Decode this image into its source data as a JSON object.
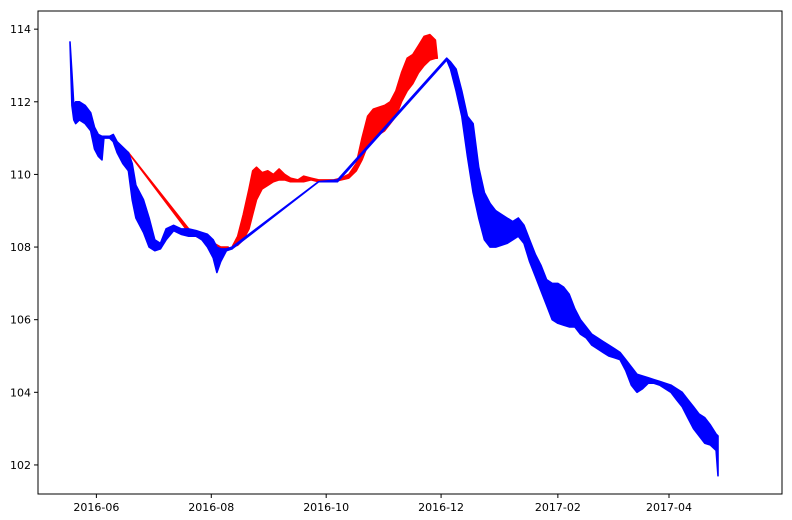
{
  "chart_data": {
    "type": "area",
    "x_ticks": [
      "2016-06",
      "2016-08",
      "2016-10",
      "2016-12",
      "2017-02",
      "2017-04"
    ],
    "y_ticks": [
      102,
      104,
      106,
      108,
      110,
      112,
      114
    ],
    "xlim": [
      "2016-05-01",
      "2017-05-31"
    ],
    "ylim": [
      101.2,
      114.5
    ],
    "grid": false,
    "legend": "none",
    "colors": {
      "up": "#ff0000",
      "down": "#0000ff",
      "axis": "#000000"
    },
    "series": [
      {
        "fill": "down",
        "points": [
          [
            "2016-05-18",
            113.65,
            113.65
          ],
          [
            "2016-05-19",
            112.8,
            111.9
          ],
          [
            "2016-05-20",
            111.9,
            111.5
          ],
          [
            "2016-05-21",
            112.0,
            111.4
          ],
          [
            "2016-05-23",
            112.0,
            111.5
          ],
          [
            "2016-05-26",
            111.9,
            111.4
          ],
          [
            "2016-05-29",
            111.7,
            111.2
          ],
          [
            "2016-05-31",
            111.3,
            110.7
          ],
          [
            "2016-06-02",
            111.1,
            110.5
          ],
          [
            "2016-06-04",
            111.05,
            110.4
          ],
          [
            "2016-06-05",
            111.05,
            111.0
          ],
          [
            "2016-06-08",
            111.05,
            111.0
          ],
          [
            "2016-06-10",
            111.1,
            110.9
          ],
          [
            "2016-06-12",
            110.9,
            110.6
          ],
          [
            "2016-06-15",
            110.75,
            110.3
          ],
          [
            "2016-06-18",
            110.6,
            110.1
          ]
        ]
      },
      {
        "fill": "up",
        "points": [
          [
            "2016-06-18",
            110.6,
            110.6
          ],
          [
            "2016-07-20",
            108.5,
            108.4
          ],
          [
            "2016-08-06",
            108.0,
            107.95
          ],
          [
            "2016-08-10",
            108.0,
            107.95
          ]
        ]
      },
      {
        "fill": "down",
        "points": [
          [
            "2016-06-18",
            110.6,
            110.1
          ],
          [
            "2016-06-20",
            110.3,
            109.3
          ],
          [
            "2016-06-22",
            109.7,
            108.8
          ],
          [
            "2016-06-26",
            109.3,
            108.4
          ],
          [
            "2016-06-29",
            108.8,
            108.0
          ],
          [
            "2016-07-02",
            108.2,
            107.9
          ],
          [
            "2016-07-05",
            108.1,
            107.95
          ],
          [
            "2016-07-08",
            108.5,
            108.2
          ],
          [
            "2016-07-12",
            108.6,
            108.45
          ],
          [
            "2016-07-16",
            108.5,
            108.35
          ],
          [
            "2016-07-20",
            108.5,
            108.3
          ],
          [
            "2016-07-24",
            108.45,
            108.3
          ],
          [
            "2016-07-27",
            108.4,
            108.2
          ],
          [
            "2016-07-30",
            108.35,
            108.0
          ],
          [
            "2016-08-02",
            108.2,
            107.7
          ],
          [
            "2016-08-04",
            108.0,
            107.3
          ],
          [
            "2016-08-06",
            107.95,
            107.6
          ],
          [
            "2016-08-09",
            107.95,
            107.9
          ],
          [
            "2016-08-12",
            108.0,
            107.95
          ]
        ]
      },
      {
        "fill": "up",
        "points": [
          [
            "2016-08-12",
            108.0,
            108.0
          ],
          [
            "2016-08-15",
            108.3,
            108.05
          ],
          [
            "2016-08-18",
            108.9,
            108.2
          ],
          [
            "2016-08-21",
            109.6,
            108.5
          ],
          [
            "2016-08-23",
            110.1,
            108.9
          ],
          [
            "2016-08-25",
            110.2,
            109.3
          ],
          [
            "2016-08-28",
            110.05,
            109.6
          ],
          [
            "2016-08-31",
            110.1,
            109.7
          ],
          [
            "2016-09-03",
            110.0,
            109.8
          ],
          [
            "2016-09-06",
            110.15,
            109.85
          ],
          [
            "2016-09-09",
            110.0,
            109.85
          ],
          [
            "2016-09-12",
            109.9,
            109.8
          ],
          [
            "2016-09-16",
            109.85,
            109.8
          ],
          [
            "2016-09-19",
            109.95,
            109.8
          ],
          [
            "2016-09-23",
            109.9,
            109.85
          ],
          [
            "2016-09-27",
            109.85,
            109.8
          ],
          [
            "2016-10-01",
            109.85,
            109.8
          ],
          [
            "2016-10-05",
            109.85,
            109.8
          ],
          [
            "2016-10-09",
            109.9,
            109.85
          ],
          [
            "2016-10-13",
            110.0,
            109.9
          ],
          [
            "2016-10-17",
            110.3,
            110.1
          ],
          [
            "2016-10-20",
            111.0,
            110.4
          ],
          [
            "2016-10-23",
            111.6,
            110.8
          ],
          [
            "2016-10-26",
            111.8,
            111.0
          ],
          [
            "2016-10-29",
            111.85,
            111.1
          ],
          [
            "2016-11-01",
            111.9,
            111.2
          ],
          [
            "2016-11-04",
            112.0,
            111.4
          ],
          [
            "2016-11-07",
            112.3,
            111.6
          ],
          [
            "2016-11-10",
            112.8,
            112.0
          ],
          [
            "2016-11-13",
            113.2,
            112.3
          ],
          [
            "2016-11-16",
            113.3,
            112.5
          ],
          [
            "2016-11-19",
            113.55,
            112.8
          ],
          [
            "2016-11-22",
            113.8,
            113.0
          ],
          [
            "2016-11-25",
            113.85,
            113.15
          ],
          [
            "2016-11-28",
            113.7,
            113.2
          ],
          [
            "2016-11-29",
            113.2,
            113.2
          ]
        ]
      },
      {
        "fill": "down",
        "points": [
          [
            "2016-08-12",
            108.0,
            107.95
          ],
          [
            "2016-09-27",
            109.8,
            109.8
          ],
          [
            "2016-10-07",
            109.85,
            109.8
          ],
          [
            "2016-12-04",
            113.2,
            113.15
          ]
        ]
      },
      {
        "fill": "down",
        "points": [
          [
            "2016-12-04",
            113.2,
            113.15
          ],
          [
            "2016-12-06",
            113.1,
            112.9
          ],
          [
            "2016-12-09",
            112.9,
            112.3
          ],
          [
            "2016-12-12",
            112.3,
            111.6
          ],
          [
            "2016-12-15",
            111.6,
            110.5
          ],
          [
            "2016-12-18",
            111.4,
            109.5
          ],
          [
            "2016-12-21",
            110.2,
            108.8
          ],
          [
            "2016-12-24",
            109.5,
            108.2
          ],
          [
            "2016-12-27",
            109.2,
            108.0
          ],
          [
            "2016-12-30",
            109.0,
            108.0
          ],
          [
            "2017-01-02",
            108.9,
            108.05
          ],
          [
            "2017-01-05",
            108.8,
            108.1
          ],
          [
            "2017-01-08",
            108.7,
            108.2
          ],
          [
            "2017-01-11",
            108.8,
            108.3
          ],
          [
            "2017-01-14",
            108.6,
            108.1
          ],
          [
            "2017-01-17",
            108.2,
            107.6
          ],
          [
            "2017-01-20",
            107.8,
            107.2
          ],
          [
            "2017-01-23",
            107.5,
            106.8
          ],
          [
            "2017-01-26",
            107.1,
            106.4
          ],
          [
            "2017-01-29",
            107.0,
            106.0
          ],
          [
            "2017-02-01",
            107.0,
            105.9
          ],
          [
            "2017-02-04",
            106.9,
            105.85
          ],
          [
            "2017-02-07",
            106.7,
            105.8
          ],
          [
            "2017-02-10",
            106.3,
            105.8
          ],
          [
            "2017-02-13",
            106.0,
            105.6
          ],
          [
            "2017-02-16",
            105.8,
            105.5
          ],
          [
            "2017-02-19",
            105.6,
            105.3
          ],
          [
            "2017-02-22",
            105.5,
            105.2
          ],
          [
            "2017-02-25",
            105.4,
            105.1
          ],
          [
            "2017-02-28",
            105.3,
            105.0
          ],
          [
            "2017-03-03",
            105.2,
            104.95
          ],
          [
            "2017-03-06",
            105.1,
            104.9
          ],
          [
            "2017-03-09",
            104.9,
            104.6
          ],
          [
            "2017-03-12",
            104.7,
            104.2
          ],
          [
            "2017-03-15",
            104.5,
            104.0
          ],
          [
            "2017-03-18",
            104.45,
            104.1
          ],
          [
            "2017-03-21",
            104.4,
            104.25
          ],
          [
            "2017-03-24",
            104.35,
            104.25
          ],
          [
            "2017-03-27",
            104.3,
            104.2
          ],
          [
            "2017-03-30",
            104.25,
            104.1
          ],
          [
            "2017-04-02",
            104.2,
            104.0
          ],
          [
            "2017-04-05",
            104.1,
            103.8
          ],
          [
            "2017-04-08",
            104.0,
            103.6
          ],
          [
            "2017-04-11",
            103.8,
            103.3
          ],
          [
            "2017-04-14",
            103.6,
            103.0
          ],
          [
            "2017-04-17",
            103.4,
            102.8
          ],
          [
            "2017-04-20",
            103.3,
            102.6
          ],
          [
            "2017-04-23",
            103.1,
            102.55
          ],
          [
            "2017-04-26",
            102.85,
            102.4
          ],
          [
            "2017-04-27",
            102.8,
            101.7
          ]
        ]
      }
    ]
  }
}
